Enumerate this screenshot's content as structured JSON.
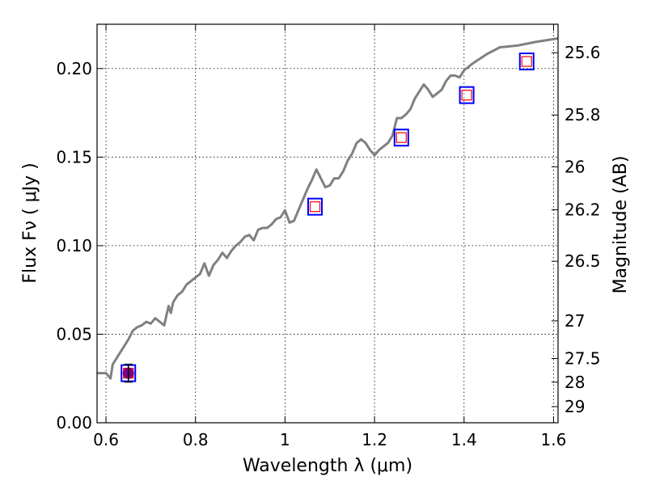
{
  "chart_data": {
    "type": "scatter",
    "xlabel": "Wavelength  λ (μm)",
    "ylabel": "Flux  Fν  ( μJy )",
    "y2label": "Magnitude (AB)",
    "xlim": [
      0.58,
      1.61
    ],
    "ylim": [
      0.0,
      0.225
    ],
    "grid": true,
    "xticks": [
      0.6,
      0.8,
      1.0,
      1.2,
      1.4,
      1.6
    ],
    "xtick_labels": [
      "0.6",
      "0.8",
      "1",
      "1.2",
      "1.4",
      "1.6"
    ],
    "yticks": [
      0.0,
      0.05,
      0.1,
      0.15,
      0.2
    ],
    "ytick_labels": [
      "0.00",
      "0.05",
      "0.10",
      "0.15",
      "0.20"
    ],
    "y2ticks": [
      25.6,
      25.8,
      26,
      26.2,
      26.5,
      27,
      27.5,
      28,
      29
    ],
    "y2tick_labels": [
      "25.6",
      "25.8",
      "26",
      "26.2",
      "26.5",
      "27",
      "27.5",
      "28",
      "29"
    ],
    "sed_model": {
      "color": "#808080",
      "x": [
        0.58,
        0.6,
        0.61,
        0.615,
        0.625,
        0.64,
        0.65,
        0.66,
        0.67,
        0.68,
        0.69,
        0.7,
        0.71,
        0.72,
        0.73,
        0.74,
        0.745,
        0.75,
        0.76,
        0.77,
        0.78,
        0.79,
        0.8,
        0.81,
        0.82,
        0.83,
        0.84,
        0.85,
        0.86,
        0.87,
        0.88,
        0.89,
        0.9,
        0.91,
        0.92,
        0.93,
        0.94,
        0.95,
        0.96,
        0.97,
        0.98,
        0.99,
        1.0,
        1.01,
        1.02,
        1.03,
        1.04,
        1.05,
        1.06,
        1.07,
        1.08,
        1.09,
        1.1,
        1.11,
        1.12,
        1.13,
        1.14,
        1.15,
        1.16,
        1.17,
        1.18,
        1.19,
        1.2,
        1.21,
        1.22,
        1.23,
        1.24,
        1.25,
        1.26,
        1.27,
        1.28,
        1.29,
        1.3,
        1.31,
        1.32,
        1.33,
        1.34,
        1.35,
        1.36,
        1.37,
        1.38,
        1.39,
        1.4,
        1.42,
        1.45,
        1.48,
        1.52,
        1.56,
        1.61
      ],
      "y": [
        0.028,
        0.028,
        0.025,
        0.033,
        0.037,
        0.043,
        0.047,
        0.052,
        0.054,
        0.055,
        0.057,
        0.056,
        0.059,
        0.057,
        0.055,
        0.066,
        0.062,
        0.068,
        0.072,
        0.074,
        0.078,
        0.08,
        0.082,
        0.084,
        0.09,
        0.083,
        0.089,
        0.092,
        0.096,
        0.093,
        0.097,
        0.1,
        0.102,
        0.105,
        0.106,
        0.103,
        0.109,
        0.11,
        0.11,
        0.112,
        0.115,
        0.116,
        0.12,
        0.113,
        0.114,
        0.12,
        0.126,
        0.132,
        0.137,
        0.143,
        0.138,
        0.133,
        0.134,
        0.138,
        0.138,
        0.142,
        0.148,
        0.152,
        0.158,
        0.16,
        0.158,
        0.154,
        0.151,
        0.154,
        0.156,
        0.158,
        0.162,
        0.172,
        0.172,
        0.174,
        0.177,
        0.183,
        0.187,
        0.191,
        0.188,
        0.184,
        0.186,
        0.188,
        0.193,
        0.196,
        0.196,
        0.195,
        0.199,
        0.203,
        0.208,
        0.212,
        0.213,
        0.215,
        0.217
      ]
    },
    "bands": {
      "marker_color": "#0000ff",
      "model_marker_color": "#ff0000",
      "x": [
        0.65,
        1.067,
        1.26,
        1.406,
        1.54
      ],
      "y": [
        0.028,
        0.122,
        0.161,
        0.185,
        0.204
      ]
    },
    "detection": {
      "color": "#800080",
      "x": 0.65,
      "y": 0.028,
      "yerr": 0.005
    }
  }
}
